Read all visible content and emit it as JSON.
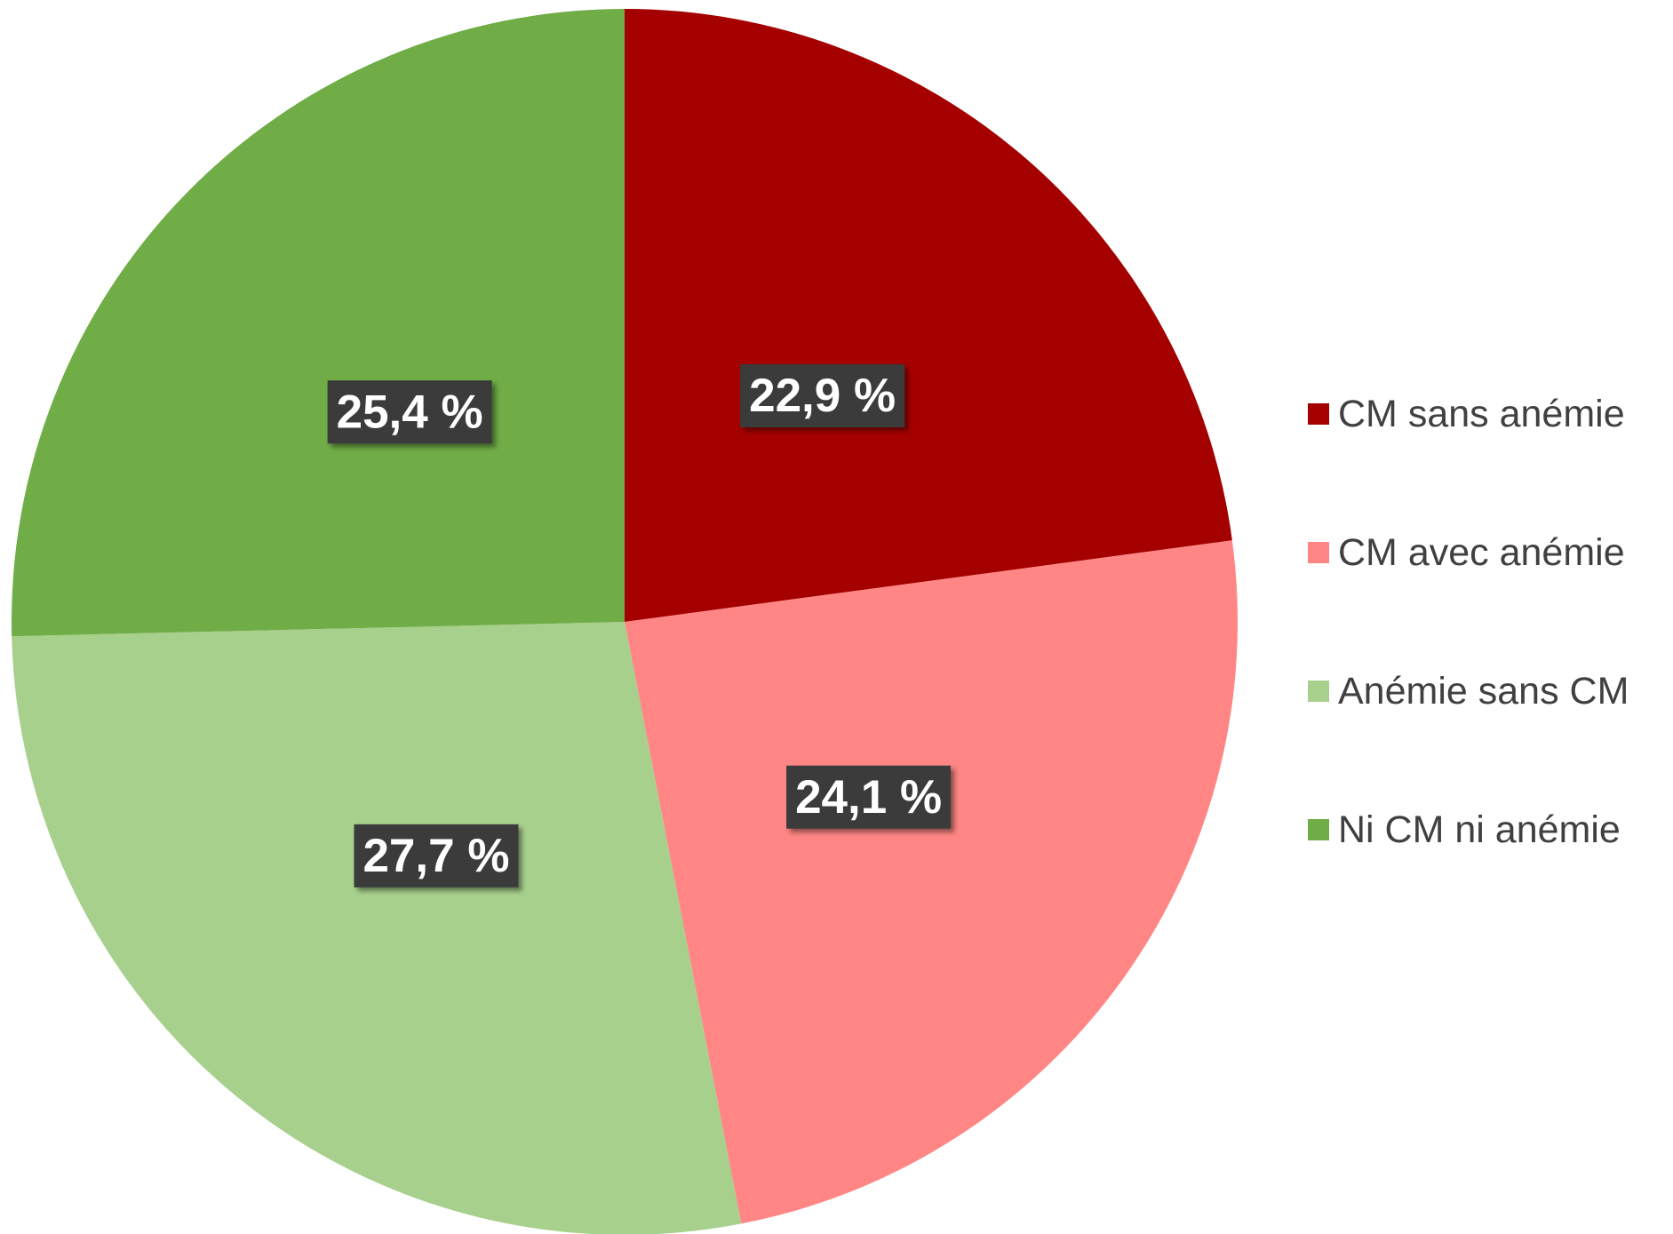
{
  "chart_data": {
    "type": "pie",
    "categories": [
      "CM sans anémie",
      "CM avec anémie",
      "Anémie sans CM",
      "Ni CM ni anémie"
    ],
    "values": [
      22.9,
      24.1,
      27.7,
      25.4
    ],
    "value_labels": [
      "22,9 %",
      "24,1 %",
      "27,7 %",
      "25,4 %"
    ],
    "colors": [
      "#a50000",
      "#ff8684",
      "#a8d08d",
      "#70ad47"
    ],
    "legend": "right"
  }
}
